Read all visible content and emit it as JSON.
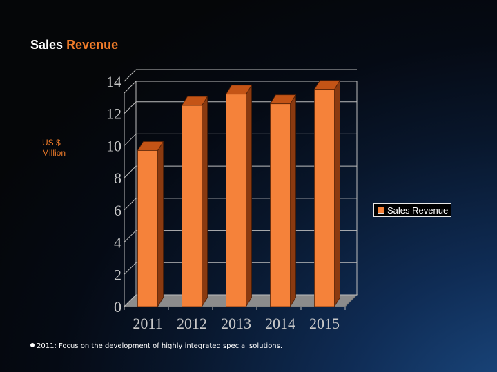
{
  "title": {
    "part1": "Sales",
    "part2": "Revenue"
  },
  "colors": {
    "bar_front": "#f5823a",
    "bar_side": "#8a3a10",
    "bar_top": "#c45416",
    "accent": "#f07c2a"
  },
  "chart_data": {
    "type": "bar",
    "title": "Sales Revenue",
    "ylabel": "US $\nMillion",
    "xlabel": "",
    "categories": [
      "2011",
      "2012",
      "2013",
      "2014",
      "2015"
    ],
    "series": [
      {
        "name": "Sales Revenue",
        "values": [
          9.7,
          12.5,
          13.2,
          12.6,
          13.5
        ]
      }
    ],
    "ylim": [
      0,
      14
    ],
    "yticks": [
      "0",
      "2",
      "4",
      "6",
      "8",
      "10",
      "12",
      "14"
    ],
    "grid": true,
    "legend": "right"
  },
  "note": {
    "text": "2011: Focus on the development of highly integrated special solutions."
  }
}
